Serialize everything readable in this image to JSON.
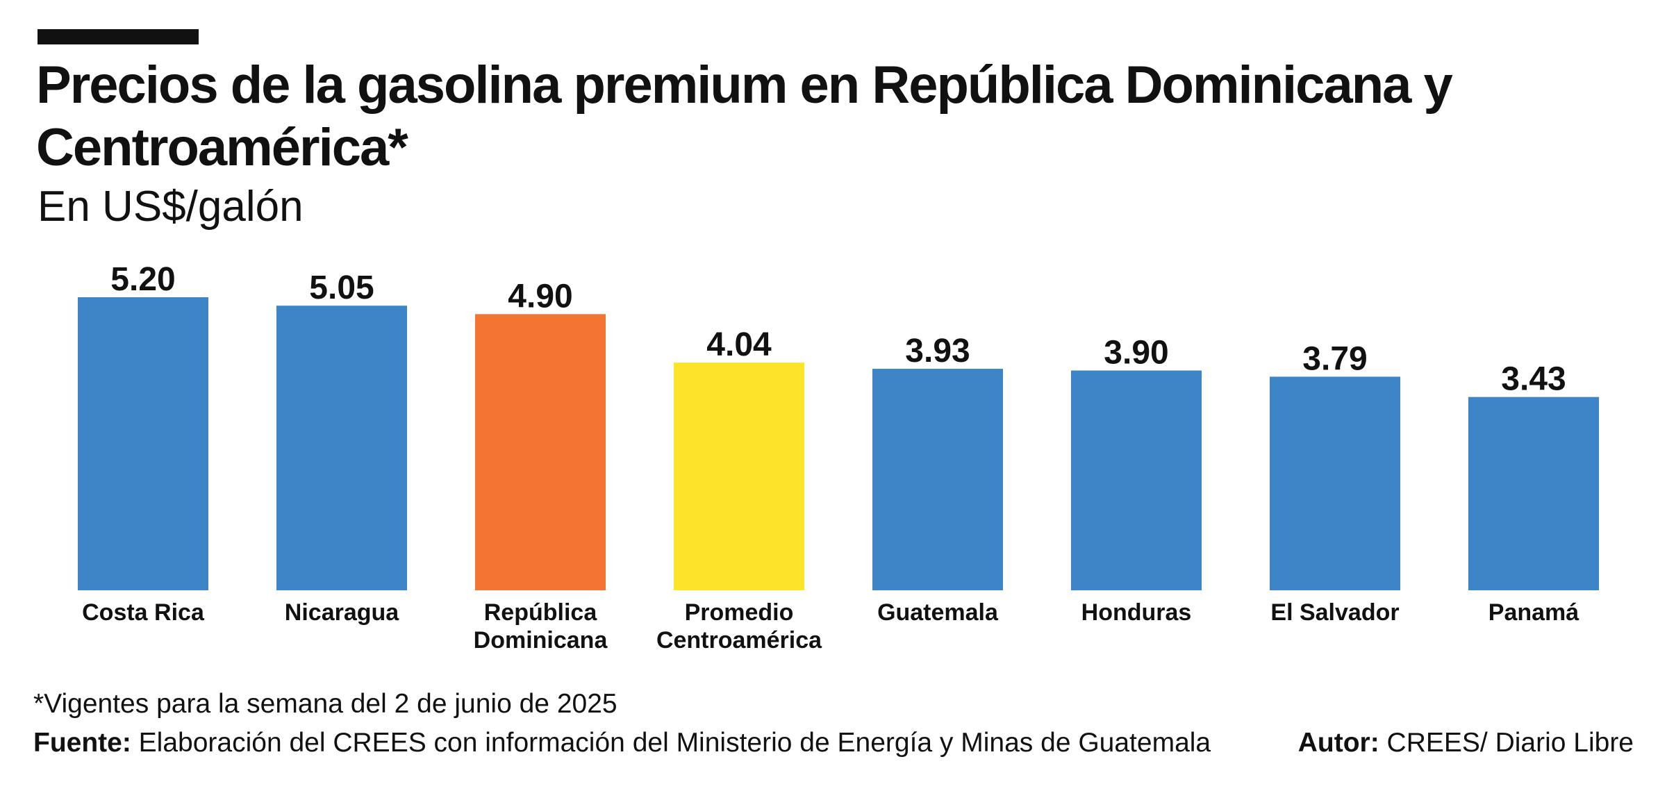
{
  "title": "Precios de la gasolina premium en República Dominicana y Centroamérica*",
  "subtitle": "En US$/galón",
  "chart_data": {
    "type": "bar",
    "title": "Precios de la gasolina premium en República Dominicana y Centroamérica*",
    "ylabel": "En US$/galón",
    "xlabel": "",
    "ylim": [
      0,
      5.2
    ],
    "categories": [
      [
        "Costa Rica"
      ],
      [
        "Nicaragua"
      ],
      [
        "República",
        "Dominicana"
      ],
      [
        "Promedio",
        "Centroamérica"
      ],
      [
        "Guatemala"
      ],
      [
        "Honduras"
      ],
      [
        "El Salvador"
      ],
      [
        "Panamá"
      ]
    ],
    "values": [
      5.2,
      5.05,
      4.9,
      4.04,
      3.93,
      3.9,
      3.79,
      3.43
    ],
    "value_labels": [
      "5.20",
      "5.05",
      "4.90",
      "4.04",
      "3.93",
      "3.90",
      "3.79",
      "3.43"
    ],
    "colors": [
      "#3d85c6",
      "#3d85c6",
      "#f47533",
      "#fde42b",
      "#3d85c6",
      "#3d85c6",
      "#3d85c6",
      "#3d85c6"
    ]
  },
  "footnote": "*Vigentes para la semana del 2 de junio de 2025",
  "source": {
    "label": "Fuente:",
    "text": " Elaboración del CREES con información del Ministerio de Energía y Minas de Guatemala"
  },
  "author": {
    "label": "Autor:",
    "text": " CREES/ Diario Libre"
  }
}
